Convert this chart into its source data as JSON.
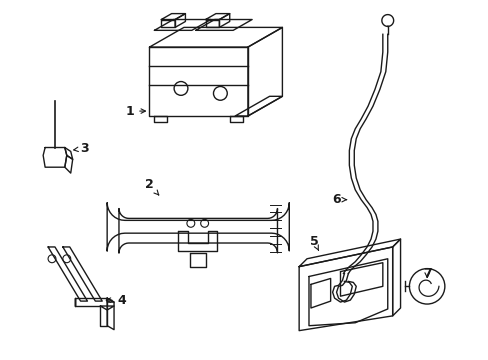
{
  "background_color": "#ffffff",
  "line_color": "#1a1a1a",
  "line_width": 1.0,
  "label_fontsize": 9,
  "figsize": [
    4.89,
    3.6
  ],
  "dpi": 100
}
